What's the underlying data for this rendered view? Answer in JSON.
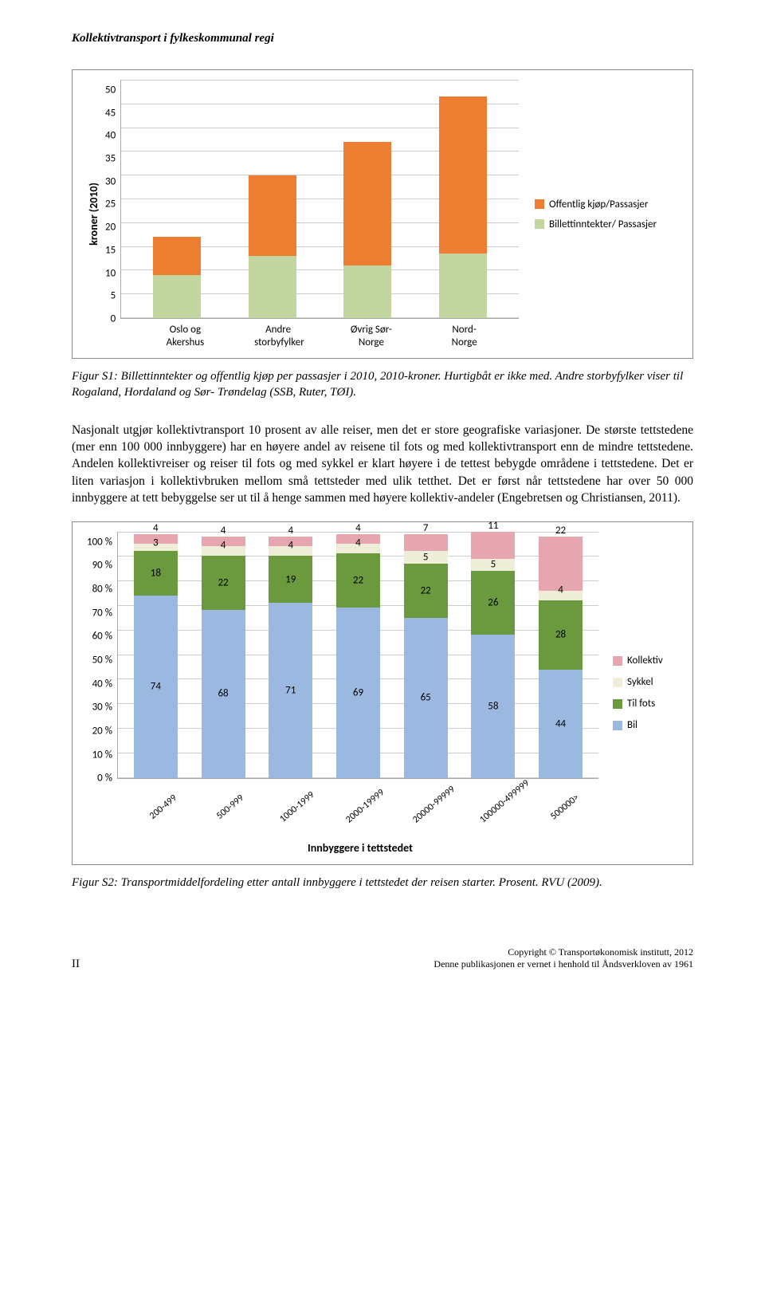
{
  "running_head": "Kollektivtransport i fylkeskommunal regi",
  "chart1": {
    "type": "stacked-bar",
    "ylabel": "kroner (2010)",
    "ymax": 50,
    "ystep": 5,
    "categories": [
      "Oslo og Akershus",
      "Andre storbyfylker",
      "Øvrig Sør-Norge",
      "Nord-Norge"
    ],
    "series": [
      {
        "name": "Billettinntekter/ Passasjer",
        "color": "#c4d6a0",
        "values": [
          9,
          13,
          11,
          13.5
        ]
      },
      {
        "name": "Offentlig kjøp/Passasjer",
        "color": "#ed7d31",
        "values": [
          8,
          17,
          26,
          33
        ]
      }
    ],
    "grid_color": "#cccccc",
    "plot_border": "#aaaaaa",
    "box_border": "#888888"
  },
  "caption1": "Figur S1: Billettinntekter og offentlig kjøp per passasjer i 2010, 2010-kroner. Hurtigbåt er ikke med. Andre storbyfylker viser til Rogaland, Hordaland og Sør- Trøndelag (SSB, Ruter, TØI).",
  "paragraph": "Nasjonalt utgjør kollektivtransport 10 prosent av alle reiser, men det er store geografiske variasjoner. De største tettstedene (mer enn 100 000 innbyggere) har en høyere andel av reisene til fots og med kollektivtransport enn de mindre tettstedene. Andelen kollektivreiser og reiser til fots og med sykkel er klart høyere i de tettest bebygde områdene i tettstedene. Det er liten variasjon i kollektivbruken mellom små tettsteder med ulik tetthet. Det er først når tettstedene har over 50 000 innbyggere at tett bebyggelse ser ut til å henge sammen med høyere kollektiv-andeler (Engebretsen og Christiansen, 2011).",
  "chart2": {
    "type": "stacked-bar-100",
    "ystep": 10,
    "xtitle": "Innbyggere i tettstedet",
    "categories": [
      "200-499",
      "500-999",
      "1000-1999",
      "2000-19999",
      "20000-99999",
      "100000-499999",
      "500000>"
    ],
    "series": [
      {
        "name": "Kollektiv",
        "color": "#e6a6b0"
      },
      {
        "name": "Sykkel",
        "color": "#eeeed8"
      },
      {
        "name": "Til fots",
        "color": "#6a9a3d"
      },
      {
        "name": "Bil",
        "color": "#9bb8e0"
      }
    ],
    "stacks": [
      {
        "kollektiv": 4,
        "sykkel": 3,
        "tilfots": 18,
        "bil": 74,
        "pad": 1
      },
      {
        "kollektiv": 4,
        "sykkel": 4,
        "tilfots": 22,
        "bil": 68,
        "pad": 2
      },
      {
        "kollektiv": 4,
        "sykkel": 4,
        "tilfots": 19,
        "bil": 71,
        "pad": 2
      },
      {
        "kollektiv": 4,
        "sykkel": 4,
        "tilfots": 22,
        "bil": 69,
        "pad": 1
      },
      {
        "kollektiv": 7,
        "sykkel": 5,
        "tilfots": 22,
        "bil": 65,
        "pad": 1
      },
      {
        "kollektiv": 11,
        "sykkel": 5,
        "tilfots": 26,
        "bil": 58,
        "pad": 0
      },
      {
        "kollektiv": 22,
        "sykkel": 4,
        "tilfots": 28,
        "bil": 44,
        "pad": 2
      }
    ]
  },
  "caption2": "Figur S2: Transportmiddelfordeling etter antall innbyggere i tettstedet der reisen starter. Prosent. RVU (2009).",
  "footer": {
    "page": "II",
    "copyright": "Copyright © Transportøkonomisk institutt, 2012",
    "note": "Denne publikasjonen er vernet i henhold til Åndsverkloven av 1961"
  }
}
